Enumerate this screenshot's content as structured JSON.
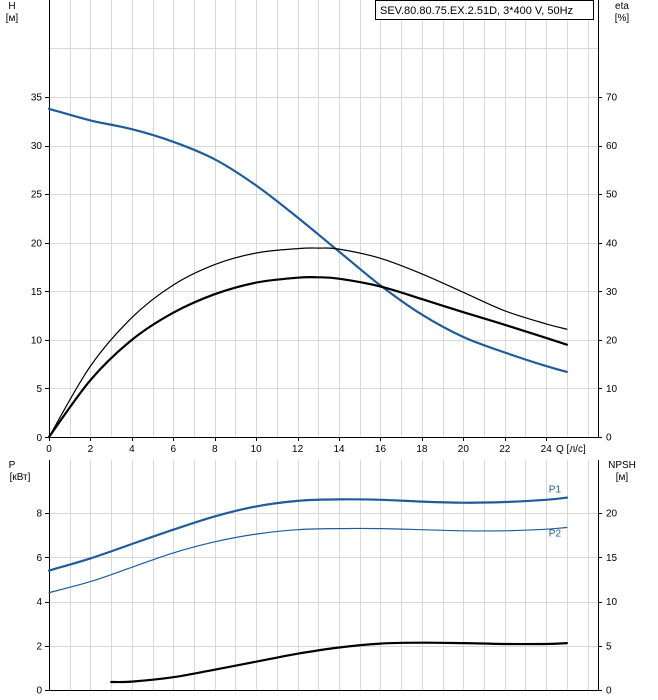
{
  "model_label": "SEV.80.80.75.EX.2.51D, 3*400 V, 50Hz",
  "colors": {
    "head": "#1f5c99",
    "efficiency": "#000000",
    "p1": "#1f5c99",
    "p2": "#1f5c99",
    "npsh": "#000000",
    "grid": "#d9d9d9"
  },
  "chart_data": [
    {
      "type": "line",
      "y_left_label": [
        "H",
        "[м]"
      ],
      "y_right_label": [
        "eta",
        "[%]"
      ],
      "x_label": "Q [л/с]",
      "x_ticks": [
        0,
        2,
        4,
        6,
        8,
        10,
        12,
        14,
        16,
        18,
        20,
        22,
        24
      ],
      "xlim": [
        0,
        26.5
      ],
      "y_left_ticks": [
        0,
        5,
        10,
        15,
        20,
        25,
        30,
        35
      ],
      "y_left_lim": [
        0,
        45
      ],
      "y_right_ticks": [
        0,
        10,
        20,
        30,
        40,
        50,
        60,
        70
      ],
      "y_right_lim": [
        0,
        90
      ],
      "grid": true,
      "series": [
        {
          "key": "head",
          "axis": "left",
          "width": 2.2,
          "x": [
            0,
            2,
            4,
            6,
            8,
            10,
            12,
            14,
            16,
            18,
            20,
            22,
            24,
            25
          ],
          "y": [
            33.8,
            32.6,
            31.7,
            30.4,
            28.6,
            25.9,
            22.6,
            19.1,
            15.6,
            12.6,
            10.3,
            8.7,
            7.3,
            6.7
          ]
        },
        {
          "key": "efficiency_upper",
          "axis": "right",
          "width": 1.2,
          "x": [
            0,
            2,
            4,
            6,
            8,
            10,
            12,
            13,
            14,
            16,
            18,
            20,
            22,
            24,
            25
          ],
          "y": [
            0,
            14.6,
            24.6,
            31.3,
            35.5,
            37.9,
            38.8,
            38.9,
            38.7,
            36.8,
            33.6,
            29.8,
            26.0,
            23.3,
            22.2
          ]
        },
        {
          "key": "efficiency",
          "axis": "right",
          "width": 2.2,
          "x": [
            0,
            2,
            4,
            6,
            8,
            10,
            12,
            13,
            14,
            16,
            18,
            20,
            22,
            24,
            25
          ],
          "y": [
            0,
            11.7,
            20.0,
            25.6,
            29.4,
            31.8,
            32.8,
            32.9,
            32.6,
            31.0,
            28.4,
            25.7,
            23.1,
            20.4,
            19.0
          ]
        }
      ]
    },
    {
      "type": "line",
      "y_left_label": [
        "P",
        "[кВт]"
      ],
      "y_right_label": [
        "NPSH",
        "[м]"
      ],
      "x_label": "",
      "xlim": [
        0,
        26.5
      ],
      "y_left_ticks": [
        0,
        2,
        4,
        6,
        8
      ],
      "y_left_lim": [
        0,
        10.4
      ],
      "y_right_ticks": [
        0,
        5,
        10,
        15,
        20
      ],
      "y_right_lim": [
        0,
        26
      ],
      "grid": true,
      "series": [
        {
          "key": "p1",
          "name": "P1",
          "axis": "left",
          "width": 2.2,
          "x": [
            0,
            2,
            4,
            6,
            8,
            10,
            12,
            14,
            16,
            18,
            20,
            22,
            24,
            25
          ],
          "y": [
            5.4,
            5.95,
            6.6,
            7.25,
            7.85,
            8.3,
            8.55,
            8.62,
            8.6,
            8.52,
            8.47,
            8.5,
            8.6,
            8.7
          ]
        },
        {
          "key": "p2",
          "name": "P2",
          "axis": "left",
          "width": 1.2,
          "x": [
            0,
            2,
            4,
            6,
            8,
            10,
            12,
            14,
            16,
            18,
            20,
            22,
            24,
            25
          ],
          "y": [
            4.4,
            4.9,
            5.55,
            6.2,
            6.7,
            7.05,
            7.25,
            7.3,
            7.3,
            7.25,
            7.2,
            7.2,
            7.27,
            7.35
          ]
        },
        {
          "key": "npsh",
          "axis": "right",
          "width": 2.2,
          "x": [
            3,
            4,
            6,
            8,
            10,
            12,
            14,
            16,
            18,
            20,
            22,
            24,
            25
          ],
          "y": [
            0.9,
            0.95,
            1.45,
            2.3,
            3.2,
            4.1,
            4.8,
            5.25,
            5.35,
            5.3,
            5.2,
            5.2,
            5.3
          ]
        }
      ]
    }
  ]
}
